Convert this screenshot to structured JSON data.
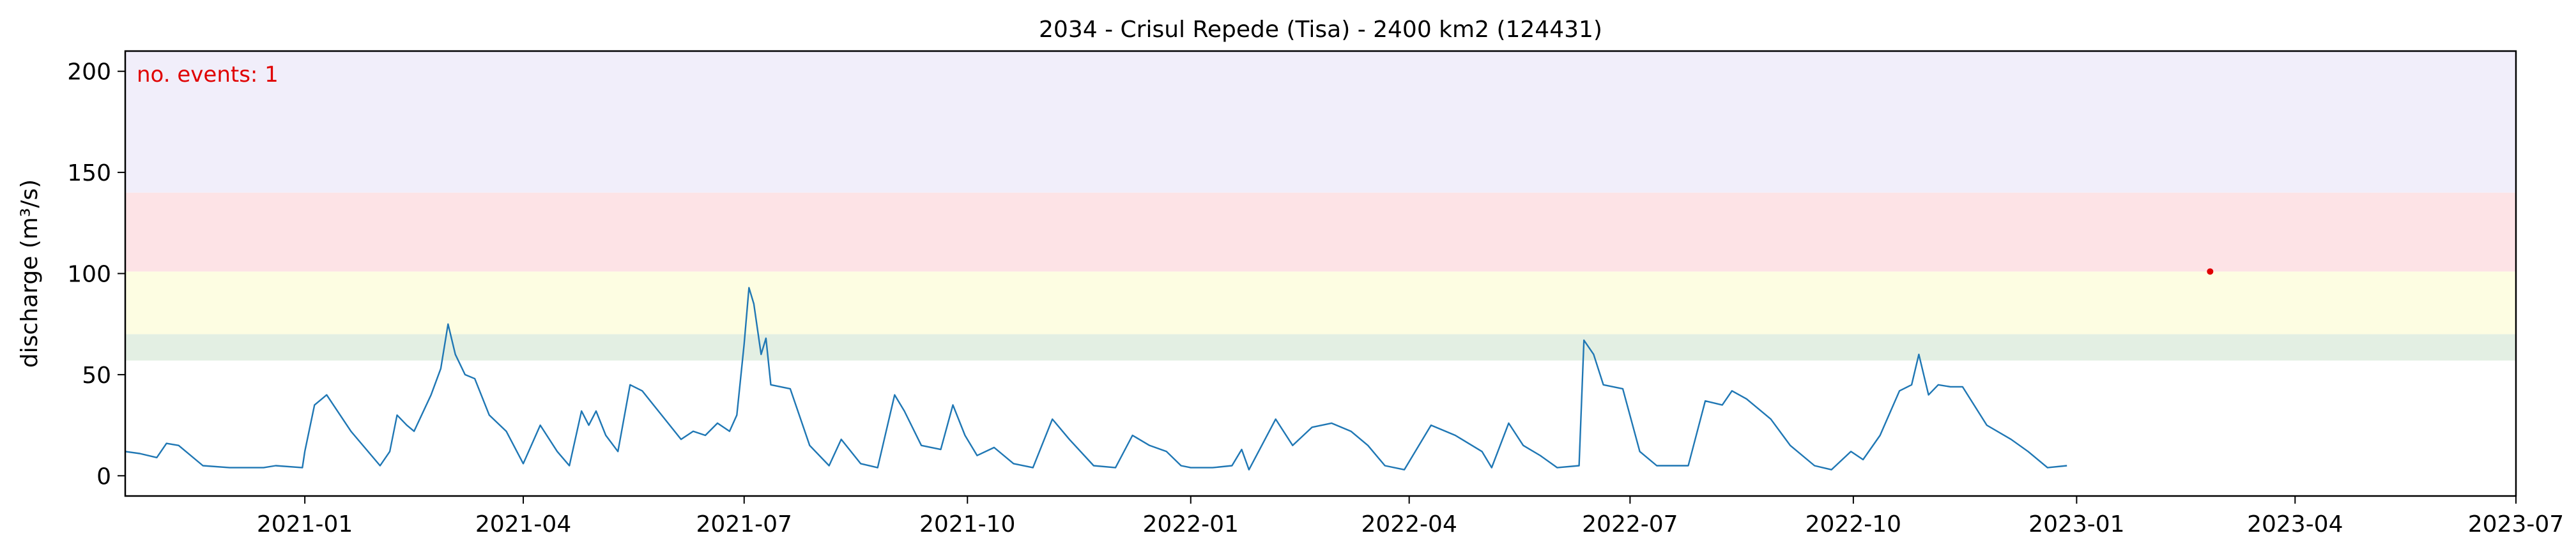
{
  "chart_data": {
    "type": "line",
    "title": "2034 - Crisul Repede (Tisa) - 2400 km2 (124431)",
    "xlabel": "",
    "ylabel": "discharge (m³/s)",
    "xlim": [
      "2020-10-19",
      "2023-07-01"
    ],
    "ylim": [
      -10,
      210
    ],
    "x_ticks": [
      "2021-01",
      "2021-04",
      "2021-07",
      "2021-10",
      "2022-01",
      "2022-04",
      "2022-07",
      "2022-10",
      "2023-01",
      "2023-04",
      "2023-07"
    ],
    "y_ticks": [
      0,
      50,
      100,
      150,
      200
    ],
    "grid": false,
    "bands": [
      {
        "from": 57,
        "to": 70,
        "color": "#e3efe3"
      },
      {
        "from": 70,
        "to": 101,
        "color": "#fdfde2"
      },
      {
        "from": 101,
        "to": 140,
        "color": "#fde3e6"
      },
      {
        "from": 140,
        "to": 210,
        "color": "#f1eefa"
      }
    ],
    "annotation": {
      "text": "no. events: 1",
      "color": "#e00000"
    },
    "events": [
      {
        "x": "2023-02-25",
        "y": 101,
        "color": "#e00000"
      }
    ],
    "series": [
      {
        "color": "#1f77b4",
        "points": [
          [
            "2020-10-19",
            12
          ],
          [
            "2020-10-25",
            11
          ],
          [
            "2020-11-01",
            9
          ],
          [
            "2020-11-05",
            16
          ],
          [
            "2020-11-10",
            15
          ],
          [
            "2020-11-20",
            5
          ],
          [
            "2020-12-01",
            4
          ],
          [
            "2020-12-15",
            4
          ],
          [
            "2020-12-20",
            5
          ],
          [
            "2020-12-31",
            4
          ],
          [
            "2021-01-01",
            12
          ],
          [
            "2021-01-05",
            35
          ],
          [
            "2021-01-10",
            40
          ],
          [
            "2021-01-20",
            22
          ],
          [
            "2021-02-01",
            5
          ],
          [
            "2021-02-05",
            12
          ],
          [
            "2021-02-08",
            30
          ],
          [
            "2021-02-12",
            25
          ],
          [
            "2021-02-15",
            22
          ],
          [
            "2021-02-22",
            40
          ],
          [
            "2021-02-26",
            53
          ],
          [
            "2021-03-01",
            75
          ],
          [
            "2021-03-04",
            60
          ],
          [
            "2021-03-08",
            50
          ],
          [
            "2021-03-12",
            48
          ],
          [
            "2021-03-18",
            30
          ],
          [
            "2021-03-25",
            22
          ],
          [
            "2021-04-01",
            6
          ],
          [
            "2021-04-08",
            25
          ],
          [
            "2021-04-15",
            12
          ],
          [
            "2021-04-20",
            5
          ],
          [
            "2021-04-25",
            32
          ],
          [
            "2021-04-28",
            25
          ],
          [
            "2021-05-01",
            32
          ],
          [
            "2021-05-05",
            20
          ],
          [
            "2021-05-10",
            12
          ],
          [
            "2021-05-15",
            45
          ],
          [
            "2021-05-20",
            42
          ],
          [
            "2021-05-28",
            30
          ],
          [
            "2021-06-05",
            18
          ],
          [
            "2021-06-10",
            22
          ],
          [
            "2021-06-15",
            20
          ],
          [
            "2021-06-20",
            26
          ],
          [
            "2021-06-25",
            22
          ],
          [
            "2021-06-28",
            30
          ],
          [
            "2021-07-01",
            65
          ],
          [
            "2021-07-03",
            93
          ],
          [
            "2021-07-05",
            85
          ],
          [
            "2021-07-08",
            60
          ],
          [
            "2021-07-10",
            68
          ],
          [
            "2021-07-12",
            45
          ],
          [
            "2021-07-20",
            43
          ],
          [
            "2021-07-28",
            15
          ],
          [
            "2021-08-05",
            5
          ],
          [
            "2021-08-10",
            18
          ],
          [
            "2021-08-18",
            6
          ],
          [
            "2021-08-25",
            4
          ],
          [
            "2021-09-01",
            40
          ],
          [
            "2021-09-05",
            32
          ],
          [
            "2021-09-12",
            15
          ],
          [
            "2021-09-20",
            13
          ],
          [
            "2021-09-25",
            35
          ],
          [
            "2021-09-30",
            20
          ],
          [
            "2021-10-05",
            10
          ],
          [
            "2021-10-12",
            14
          ],
          [
            "2021-10-20",
            6
          ],
          [
            "2021-10-28",
            4
          ],
          [
            "2021-11-05",
            28
          ],
          [
            "2021-11-12",
            18
          ],
          [
            "2021-11-22",
            5
          ],
          [
            "2021-12-01",
            4
          ],
          [
            "2021-12-08",
            20
          ],
          [
            "2021-12-15",
            15
          ],
          [
            "2021-12-22",
            12
          ],
          [
            "2021-12-28",
            5
          ],
          [
            "2022-01-01",
            4
          ],
          [
            "2022-01-10",
            4
          ],
          [
            "2022-01-18",
            5
          ],
          [
            "2022-01-22",
            13
          ],
          [
            "2022-01-25",
            3
          ],
          [
            "2022-02-05",
            28
          ],
          [
            "2022-02-12",
            15
          ],
          [
            "2022-02-20",
            24
          ],
          [
            "2022-02-28",
            26
          ],
          [
            "2022-03-08",
            22
          ],
          [
            "2022-03-15",
            15
          ],
          [
            "2022-03-22",
            5
          ],
          [
            "2022-03-30",
            3
          ],
          [
            "2022-04-10",
            25
          ],
          [
            "2022-04-20",
            20
          ],
          [
            "2022-05-01",
            12
          ],
          [
            "2022-05-05",
            4
          ],
          [
            "2022-05-12",
            26
          ],
          [
            "2022-05-18",
            15
          ],
          [
            "2022-05-25",
            10
          ],
          [
            "2022-06-01",
            4
          ],
          [
            "2022-06-10",
            5
          ],
          [
            "2022-06-12",
            67
          ],
          [
            "2022-06-16",
            60
          ],
          [
            "2022-06-20",
            45
          ],
          [
            "2022-06-28",
            43
          ],
          [
            "2022-07-05",
            12
          ],
          [
            "2022-07-12",
            5
          ],
          [
            "2022-07-20",
            5
          ],
          [
            "2022-07-25",
            5
          ],
          [
            "2022-08-01",
            37
          ],
          [
            "2022-08-08",
            35
          ],
          [
            "2022-08-12",
            42
          ],
          [
            "2022-08-18",
            38
          ],
          [
            "2022-08-28",
            28
          ],
          [
            "2022-09-05",
            15
          ],
          [
            "2022-09-15",
            5
          ],
          [
            "2022-09-22",
            3
          ],
          [
            "2022-09-30",
            12
          ],
          [
            "2022-10-05",
            8
          ],
          [
            "2022-10-12",
            20
          ],
          [
            "2022-10-20",
            42
          ],
          [
            "2022-10-25",
            45
          ],
          [
            "2022-10-28",
            60
          ],
          [
            "2022-11-01",
            40
          ],
          [
            "2022-11-05",
            45
          ],
          [
            "2022-11-10",
            44
          ],
          [
            "2022-11-15",
            44
          ],
          [
            "2022-11-25",
            25
          ],
          [
            "2022-12-05",
            18
          ],
          [
            "2022-12-12",
            12
          ],
          [
            "2022-12-20",
            4
          ],
          [
            "2022-12-28",
            5
          ]
        ]
      }
    ]
  }
}
